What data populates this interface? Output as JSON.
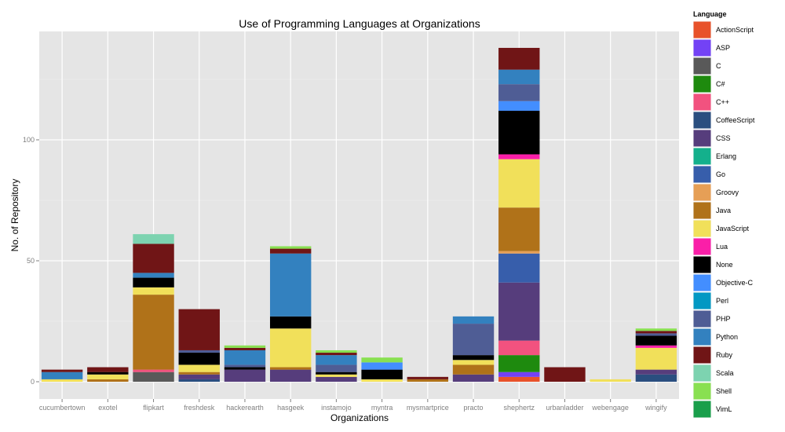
{
  "chart_data": {
    "type": "bar",
    "stacked": true,
    "title": "Use of Programming Languages at Organizations",
    "xlabel": "Organizations",
    "ylabel": "No. of Repository",
    "ylim": [
      0,
      145
    ],
    "yticks": [
      0,
      50,
      100
    ],
    "grid": true,
    "legend_position": "right",
    "legend_title": "Language",
    "categories": [
      "cucumbertown",
      "exotel",
      "flipkart",
      "freshdesk",
      "hackerearth",
      "hasgeek",
      "instamojo",
      "myntra",
      "mysmartprice",
      "practo",
      "shephertz",
      "urbanladder",
      "webengage",
      "wingify"
    ],
    "series": [
      {
        "name": "ActionScript",
        "color": "#E8522A",
        "values": [
          0,
          0,
          0,
          0,
          0,
          0,
          0,
          0,
          0,
          0,
          2,
          0,
          0,
          0
        ]
      },
      {
        "name": "ASP",
        "color": "#7342F5",
        "values": [
          0,
          0,
          0,
          0,
          0,
          0,
          0,
          0,
          0,
          0,
          2,
          0,
          0,
          0
        ]
      },
      {
        "name": "C",
        "color": "#595959",
        "values": [
          0,
          0,
          4,
          0,
          0,
          0,
          0,
          0,
          0,
          0,
          0,
          0,
          0,
          0
        ]
      },
      {
        "name": "C#",
        "color": "#1E8A0E",
        "values": [
          0,
          0,
          0,
          0,
          0,
          0,
          0,
          0,
          0,
          0,
          7,
          0,
          0,
          0
        ]
      },
      {
        "name": "C++",
        "color": "#F2527F",
        "values": [
          0,
          0,
          1,
          0,
          0,
          0,
          0,
          0,
          0,
          0,
          6,
          0,
          0,
          0
        ]
      },
      {
        "name": "CoffeeScript",
        "color": "#2A4E7F",
        "values": [
          0,
          0,
          0,
          1,
          0,
          0,
          0,
          0,
          0,
          0,
          0,
          0,
          0,
          3
        ]
      },
      {
        "name": "CSS",
        "color": "#563D7C",
        "values": [
          0,
          0,
          0,
          2,
          5,
          5,
          2,
          0,
          0,
          3,
          24,
          0,
          0,
          2
        ]
      },
      {
        "name": "Erlang",
        "color": "#14B08C",
        "values": [
          0,
          0,
          0,
          0,
          0,
          0,
          0,
          0,
          0,
          0,
          0,
          0,
          0,
          0
        ]
      },
      {
        "name": "Go",
        "color": "#375EAB",
        "values": [
          0,
          0,
          0,
          0,
          0,
          0,
          0,
          0,
          0,
          0,
          12,
          0,
          0,
          0
        ]
      },
      {
        "name": "Groovy",
        "color": "#E69F56",
        "values": [
          0,
          0,
          0,
          0,
          0,
          0,
          0,
          0,
          0,
          0,
          1,
          0,
          0,
          0
        ]
      },
      {
        "name": "Java",
        "color": "#B07219",
        "values": [
          0,
          1,
          31,
          1,
          0,
          1,
          0,
          0,
          1,
          4,
          18,
          0,
          0,
          0
        ]
      },
      {
        "name": "JavaScript",
        "color": "#F1E05A",
        "values": [
          1,
          2,
          3,
          3,
          0,
          16,
          1,
          1,
          0,
          2,
          20,
          0,
          1,
          9
        ]
      },
      {
        "name": "Lua",
        "color": "#FA1FA8",
        "values": [
          0,
          0,
          0,
          0,
          0,
          0,
          0,
          0,
          0,
          0,
          2,
          0,
          0,
          1
        ]
      },
      {
        "name": "None",
        "color": "#000000",
        "values": [
          0,
          1,
          4,
          5,
          1,
          5,
          1,
          4,
          0,
          2,
          18,
          0,
          0,
          4
        ]
      },
      {
        "name": "Objective-C",
        "color": "#438EFF",
        "values": [
          0,
          0,
          0,
          0,
          0,
          0,
          0,
          3,
          0,
          0,
          4,
          0,
          0,
          0
        ]
      },
      {
        "name": "Perl",
        "color": "#0298C3",
        "values": [
          0,
          0,
          0,
          0,
          0,
          0,
          0,
          0,
          0,
          0,
          0,
          0,
          0,
          0
        ]
      },
      {
        "name": "PHP",
        "color": "#4F5D95",
        "values": [
          0,
          0,
          0,
          1,
          1,
          0,
          3,
          0,
          0,
          13,
          7,
          0,
          0,
          1
        ]
      },
      {
        "name": "Python",
        "color": "#3381BF",
        "values": [
          3,
          0,
          2,
          0,
          6,
          26,
          4,
          0,
          0,
          3,
          6,
          0,
          0,
          0
        ]
      },
      {
        "name": "Ruby",
        "color": "#701516",
        "values": [
          1,
          2,
          12,
          17,
          1,
          2,
          1,
          0,
          1,
          0,
          9,
          6,
          0,
          1
        ]
      },
      {
        "name": "Scala",
        "color": "#7DD3B0",
        "values": [
          0,
          0,
          4,
          0,
          0,
          0,
          0,
          0,
          0,
          0,
          0,
          0,
          0,
          0
        ]
      },
      {
        "name": "Shell",
        "color": "#89E051",
        "values": [
          0,
          0,
          0,
          0,
          1,
          1,
          1,
          2,
          0,
          0,
          0,
          0,
          0,
          1
        ]
      },
      {
        "name": "VimL",
        "color": "#199F4B",
        "values": [
          0,
          0,
          0,
          0,
          0,
          0,
          0,
          0,
          0,
          0,
          0,
          0,
          0,
          0
        ]
      }
    ]
  }
}
